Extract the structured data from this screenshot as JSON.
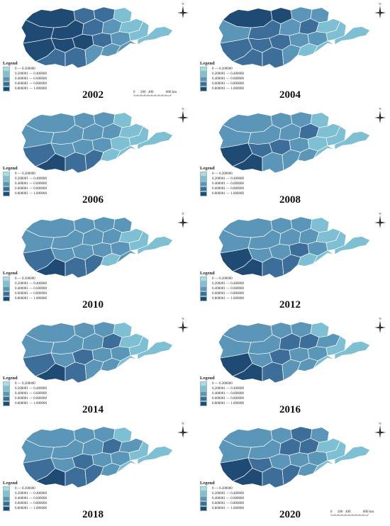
{
  "legend": {
    "title": "Legend",
    "classes": [
      {
        "label": "0 — 0.200000",
        "color": "#a9dce6"
      },
      {
        "label": "0.200001 — 0.400000",
        "color": "#7ebfd4"
      },
      {
        "label": "0.400001 — 0.600000",
        "color": "#5b96b8"
      },
      {
        "label": "0.600001 — 0.800000",
        "color": "#3c6e99"
      },
      {
        "label": "0.800001 — 1.000000",
        "color": "#1f4a73"
      }
    ]
  },
  "compass_label": "N",
  "scale_bar": {
    "ticks": [
      "0",
      "200",
      "400",
      "800"
    ],
    "unit": "km"
  },
  "panels": [
    {
      "year": "2002"
    },
    {
      "year": "2004"
    },
    {
      "year": "2006"
    },
    {
      "year": "2008"
    },
    {
      "year": "2010"
    },
    {
      "year": "2012"
    },
    {
      "year": "2014"
    },
    {
      "year": "2016"
    },
    {
      "year": "2018"
    },
    {
      "year": "2020"
    }
  ]
}
